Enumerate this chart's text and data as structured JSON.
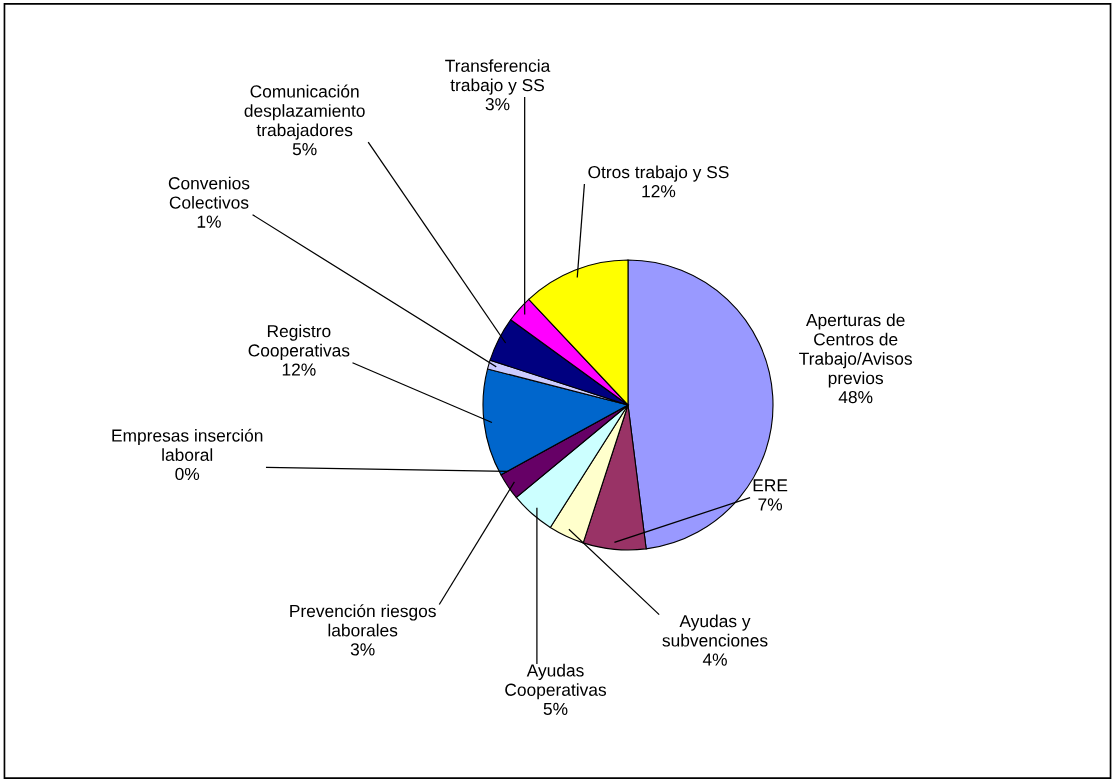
{
  "chart_data": {
    "type": "pie",
    "categories": [
      "Aperturas de\nCentros de\nTrabajo/Avisos\nprevios",
      "ERE",
      "Ayudas y\nsubvenciones",
      "Ayudas\nCooperativas",
      "Prevención riesgos\nlaborales",
      "Empresas inserción\nlaboral",
      "Registro\nCooperativas",
      "Convenios\nColectivos",
      "Comunicación\ndesplazamiento\ntrabajadores",
      "Transferencia\ntrabajo y SS",
      "Otros trabajo y SS"
    ],
    "values": [
      48,
      7,
      4,
      5,
      3,
      0,
      12,
      1,
      5,
      3,
      12
    ],
    "value_labels": [
      "48%",
      "7%",
      "4%",
      "5%",
      "3%",
      "0%",
      "12%",
      "1%",
      "5%",
      "3%",
      "12%"
    ],
    "colors": [
      "#9999ff",
      "#993366",
      "#ffffcc",
      "#ccffff",
      "#660066",
      "#ff8080",
      "#0066cc",
      "#ccccff",
      "#000080",
      "#ff00ff",
      "#ffff00"
    ]
  }
}
